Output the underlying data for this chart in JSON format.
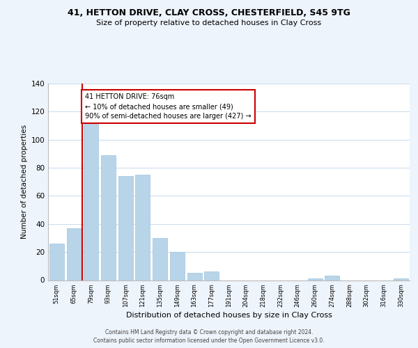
{
  "title": "41, HETTON DRIVE, CLAY CROSS, CHESTERFIELD, S45 9TG",
  "subtitle": "Size of property relative to detached houses in Clay Cross",
  "xlabel": "Distribution of detached houses by size in Clay Cross",
  "ylabel": "Number of detached properties",
  "bar_labels": [
    "51sqm",
    "65sqm",
    "79sqm",
    "93sqm",
    "107sqm",
    "121sqm",
    "135sqm",
    "149sqm",
    "163sqm",
    "177sqm",
    "191sqm",
    "204sqm",
    "218sqm",
    "232sqm",
    "246sqm",
    "260sqm",
    "274sqm",
    "288sqm",
    "302sqm",
    "316sqm",
    "330sqm"
  ],
  "bar_values": [
    26,
    37,
    118,
    89,
    74,
    75,
    30,
    20,
    5,
    6,
    0,
    0,
    0,
    0,
    0,
    1,
    3,
    0,
    0,
    0,
    1
  ],
  "bar_color": "#b8d4e8",
  "bar_edge_color": "#a0c4e0",
  "marker_color": "#cc0000",
  "annotation_title": "41 HETTON DRIVE: 76sqm",
  "annotation_line1": "← 10% of detached houses are smaller (49)",
  "annotation_line2": "90% of semi-detached houses are larger (427) →",
  "ylim": [
    0,
    140
  ],
  "yticks": [
    0,
    20,
    40,
    60,
    80,
    100,
    120,
    140
  ],
  "footer1": "Contains HM Land Registry data © Crown copyright and database right 2024.",
  "footer2": "Contains public sector information licensed under the Open Government Licence v3.0.",
  "bg_color": "#eef4fb",
  "plot_bg_color": "#ffffff",
  "grid_color": "#ccdded"
}
